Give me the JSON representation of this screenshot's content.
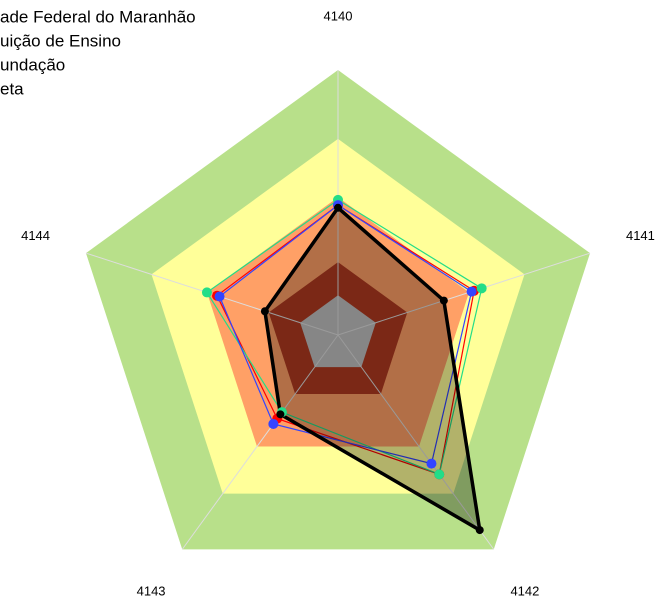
{
  "chart_data": {
    "type": "radar",
    "categories": [
      "4140",
      "4141",
      "4142",
      "4143",
      "4144"
    ],
    "rlim": [
      0,
      100
    ],
    "bands": [
      {
        "to": 100,
        "color": "#b8e08a"
      },
      {
        "to": 74,
        "color": "#ffff99"
      },
      {
        "to": 52,
        "color": "#ffa066"
      },
      {
        "to": 27.5,
        "color": "#b03a20"
      },
      {
        "to": 15,
        "color": "#c0c0c0"
      }
    ],
    "series": [
      {
        "name": "ade Federal do Maranhão",
        "color": "#ff0000",
        "values": [
          49,
          54,
          65,
          39,
          48
        ]
      },
      {
        "name": "uição de Ensino",
        "color": "#22dd88",
        "values": [
          51,
          57,
          65,
          36,
          52
        ]
      },
      {
        "name": "undação",
        "color": "#3344ff",
        "values": [
          49,
          53,
          60,
          41.5,
          47
        ]
      },
      {
        "name": "eta",
        "color": "#000000",
        "values": [
          48,
          42,
          91,
          37,
          29
        ],
        "fill": true
      }
    ]
  }
}
